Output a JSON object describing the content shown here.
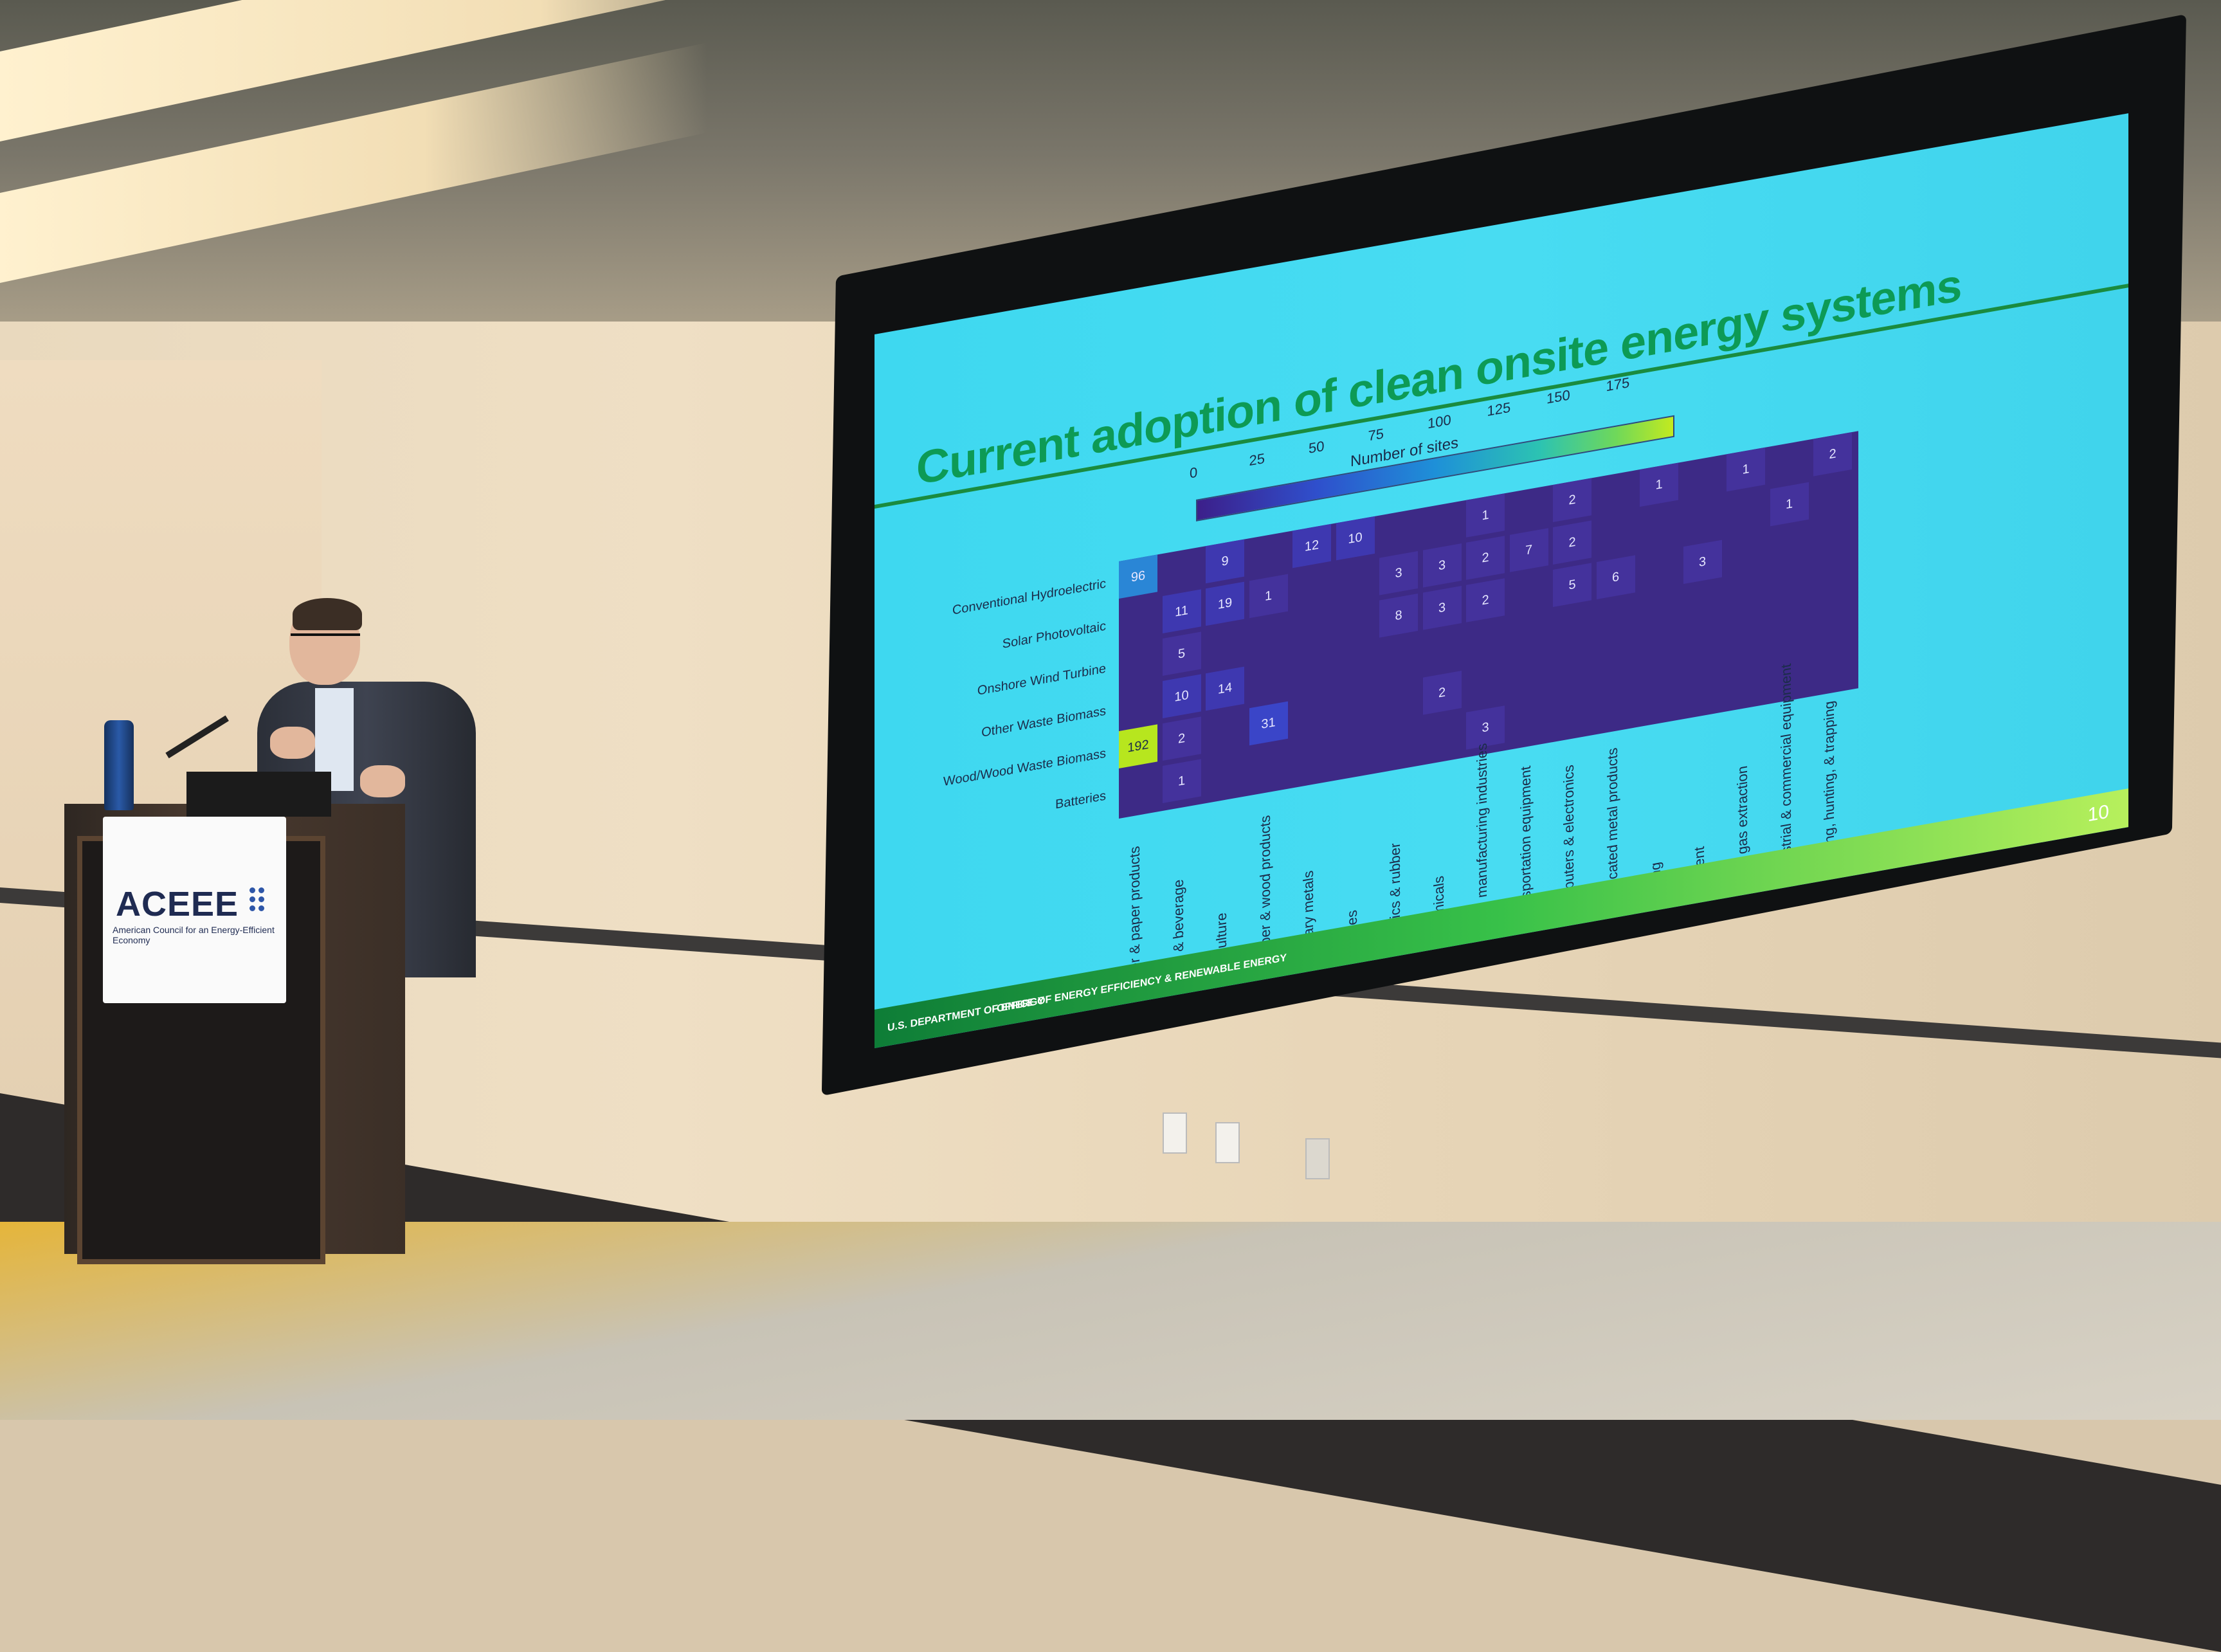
{
  "slide": {
    "title": "Current adoption of clean onsite energy systems",
    "footer_doe": "U.S. DEPARTMENT OF ENERGY",
    "footer_office": "OFFICE OF ENERGY EFFICIENCY & RENEWABLE ENERGY",
    "page_number": "10",
    "colorbar_title": "Number of sites",
    "colorbar_ticks": [
      "0",
      "25",
      "50",
      "75",
      "100",
      "125",
      "150",
      "175"
    ]
  },
  "chart_data": {
    "type": "heatmap",
    "title": "Current adoption of clean onsite energy systems",
    "colorbar_label": "Number of sites",
    "rows": [
      "Conventional Hydroelectric",
      "Solar Photovoltaic",
      "Onshore Wind Turbine",
      "Other Waste Biomass",
      "Wood/Wood Waste Biomass",
      "Batteries"
    ],
    "columns": [
      "Paper & paper products",
      "Food & beverage",
      "Agriculture",
      "Lumber & wood products",
      "Primary metals",
      "Textiles",
      "Plastics & rubber",
      "Chemicals",
      "Misc. manufacturing industries",
      "Transportation equipment",
      "Computers & electronics",
      "Fabricated metal products",
      "Mining",
      "Cement",
      "Oil & gas extraction",
      "Industrial & commercial equipment",
      "Fishing, hunting, & trapping"
    ],
    "cells": [
      {
        "row": 0,
        "col": 0,
        "value": 96
      },
      {
        "row": 0,
        "col": 2,
        "value": 9
      },
      {
        "row": 0,
        "col": 4,
        "value": 12
      },
      {
        "row": 0,
        "col": 5,
        "value": 10
      },
      {
        "row": 0,
        "col": 8,
        "value": 1
      },
      {
        "row": 0,
        "col": 10,
        "value": 2
      },
      {
        "row": 0,
        "col": 12,
        "value": 1
      },
      {
        "row": 0,
        "col": 14,
        "value": 1
      },
      {
        "row": 0,
        "col": 16,
        "value": 2
      },
      {
        "row": 1,
        "col": 1,
        "value": 11
      },
      {
        "row": 1,
        "col": 2,
        "value": 19
      },
      {
        "row": 1,
        "col": 3,
        "value": 1
      },
      {
        "row": 1,
        "col": 6,
        "value": 3
      },
      {
        "row": 1,
        "col": 7,
        "value": 3
      },
      {
        "row": 1,
        "col": 8,
        "value": 2
      },
      {
        "row": 1,
        "col": 9,
        "value": 7
      },
      {
        "row": 1,
        "col": 10,
        "value": 2
      },
      {
        "row": 1,
        "col": 15,
        "value": 1
      },
      {
        "row": 2,
        "col": 6,
        "value": 8
      },
      {
        "row": 2,
        "col": 7,
        "value": 3
      },
      {
        "row": 2,
        "col": 8,
        "value": 2
      },
      {
        "row": 2,
        "col": 10,
        "value": 5
      },
      {
        "row": 2,
        "col": 11,
        "value": 6
      },
      {
        "row": 2,
        "col": 13,
        "value": 3
      },
      {
        "row": 2,
        "col": 1,
        "value": 5
      },
      {
        "row": 3,
        "col": 1,
        "value": 10
      },
      {
        "row": 3,
        "col": 2,
        "value": 14
      },
      {
        "row": 4,
        "col": 0,
        "value": 192
      },
      {
        "row": 4,
        "col": 1,
        "value": 2
      },
      {
        "row": 4,
        "col": 3,
        "value": 31
      },
      {
        "row": 4,
        "col": 7,
        "value": 2
      },
      {
        "row": 5,
        "col": 1,
        "value": 1
      },
      {
        "row": 5,
        "col": 8,
        "value": 3
      }
    ],
    "colorbar_ticks": [
      0,
      25,
      50,
      75,
      100,
      125,
      150,
      175
    ]
  },
  "podium": {
    "logo_text": "ACEEE",
    "logo_subtitle": "American Council for an Energy-Efficient Economy"
  }
}
